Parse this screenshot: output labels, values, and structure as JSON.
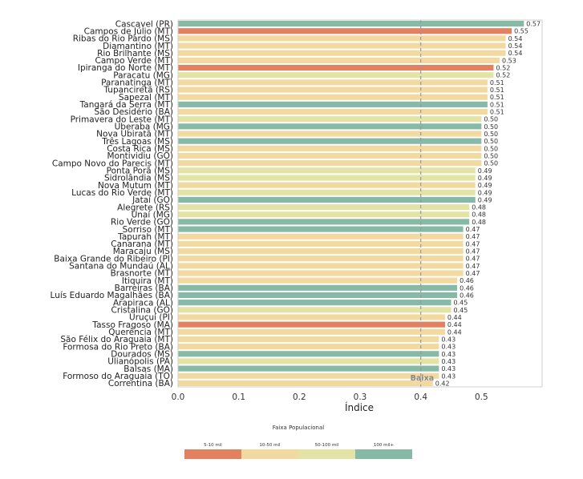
{
  "chart_data": {
    "type": "bar",
    "orientation": "horizontal",
    "xlabel": "Índice",
    "xlim": [
      0,
      0.6
    ],
    "xticks": [
      "0.0",
      "0.1",
      "0.2",
      "0.3",
      "0.4",
      "0.5"
    ],
    "grid": false,
    "reference_line": {
      "x": 0.4,
      "label": "Baixa",
      "color": "#999999"
    },
    "bars": [
      {
        "label": "Cascavel (PR)",
        "value": 0.57,
        "value_label": "0.57",
        "group": "100 mil+"
      },
      {
        "label": "Campos de Júlio (MT)",
        "value": 0.55,
        "value_label": "0.55",
        "group": "5-10 mil"
      },
      {
        "label": "Ribas do Rio Pardo (MS)",
        "value": 0.54,
        "value_label": "0.54",
        "group": "10-50 mil"
      },
      {
        "label": "Diamantino (MT)",
        "value": 0.54,
        "value_label": "0.54",
        "group": "10-50 mil"
      },
      {
        "label": "Rio Brilhante (MS)",
        "value": 0.54,
        "value_label": "0.54",
        "group": "10-50 mil"
      },
      {
        "label": "Campo Verde (MT)",
        "value": 0.53,
        "value_label": "0.53",
        "group": "10-50 mil"
      },
      {
        "label": "Ipiranga do Norte (MT)",
        "value": 0.52,
        "value_label": "0.52",
        "group": "5-10 mil"
      },
      {
        "label": "Paracatu (MG)",
        "value": 0.52,
        "value_label": "0.52",
        "group": "50-100 mil"
      },
      {
        "label": "Paranatinga (MT)",
        "value": 0.51,
        "value_label": "0.51",
        "group": "10-50 mil"
      },
      {
        "label": "Tupanciretã (RS)",
        "value": 0.51,
        "value_label": "0.51",
        "group": "10-50 mil"
      },
      {
        "label": "Sapezal (MT)",
        "value": 0.51,
        "value_label": "0.51",
        "group": "10-50 mil"
      },
      {
        "label": "Tangará da Serra (MT)",
        "value": 0.51,
        "value_label": "0.51",
        "group": "100 mil+"
      },
      {
        "label": "São Desidério (BA)",
        "value": 0.51,
        "value_label": "0.51",
        "group": "10-50 mil"
      },
      {
        "label": "Primavera do Leste (MT)",
        "value": 0.5,
        "value_label": "0.50",
        "group": "50-100 mil"
      },
      {
        "label": "Uberaba (MG)",
        "value": 0.5,
        "value_label": "0.50",
        "group": "100 mil+"
      },
      {
        "label": "Nova Ubiratã (MT)",
        "value": 0.5,
        "value_label": "0.50",
        "group": "10-50 mil"
      },
      {
        "label": "Três Lagoas (MS)",
        "value": 0.5,
        "value_label": "0.50",
        "group": "100 mil+"
      },
      {
        "label": "Costa Rica (MS)",
        "value": 0.5,
        "value_label": "0.50",
        "group": "10-50 mil"
      },
      {
        "label": "Montividiu (GO)",
        "value": 0.5,
        "value_label": "0.50",
        "group": "10-50 mil"
      },
      {
        "label": "Campo Novo do Parecis (MT)",
        "value": 0.5,
        "value_label": "0.50",
        "group": "10-50 mil"
      },
      {
        "label": "Ponta Porã (MS)",
        "value": 0.49,
        "value_label": "0.49",
        "group": "50-100 mil"
      },
      {
        "label": "Sidrolândia (MS)",
        "value": 0.49,
        "value_label": "0.49",
        "group": "50-100 mil"
      },
      {
        "label": "Nova Mutum (MT)",
        "value": 0.49,
        "value_label": "0.49",
        "group": "10-50 mil"
      },
      {
        "label": "Lucas do Rio Verde (MT)",
        "value": 0.49,
        "value_label": "0.49",
        "group": "50-100 mil"
      },
      {
        "label": "Jataí (GO)",
        "value": 0.49,
        "value_label": "0.49",
        "group": "100 mil+"
      },
      {
        "label": "Alegrete (RS)",
        "value": 0.48,
        "value_label": "0.48",
        "group": "50-100 mil"
      },
      {
        "label": "Unaí (MG)",
        "value": 0.48,
        "value_label": "0.48",
        "group": "50-100 mil"
      },
      {
        "label": "Rio Verde (GO)",
        "value": 0.48,
        "value_label": "0.48",
        "group": "100 mil+"
      },
      {
        "label": "Sorriso (MT)",
        "value": 0.47,
        "value_label": "0.47",
        "group": "100 mil+"
      },
      {
        "label": "Tapurah (MT)",
        "value": 0.47,
        "value_label": "0.47",
        "group": "10-50 mil"
      },
      {
        "label": "Canarana (MT)",
        "value": 0.47,
        "value_label": "0.47",
        "group": "10-50 mil"
      },
      {
        "label": "Maracaju (MS)",
        "value": 0.47,
        "value_label": "0.47",
        "group": "10-50 mil"
      },
      {
        "label": "Baixa Grande do Ribeiro (PI)",
        "value": 0.47,
        "value_label": "0.47",
        "group": "10-50 mil"
      },
      {
        "label": "Santana do Mundaú (AL)",
        "value": 0.47,
        "value_label": "0.47",
        "group": "10-50 mil"
      },
      {
        "label": "Brasnorte (MT)",
        "value": 0.47,
        "value_label": "0.47",
        "group": "10-50 mil"
      },
      {
        "label": "Itiquira (MT)",
        "value": 0.46,
        "value_label": "0.46",
        "group": "10-50 mil"
      },
      {
        "label": "Barreiras (BA)",
        "value": 0.46,
        "value_label": "0.46",
        "group": "100 mil+"
      },
      {
        "label": "Luís Eduardo Magalhães (BA)",
        "value": 0.46,
        "value_label": "0.46",
        "group": "100 mil+"
      },
      {
        "label": "Arapiraca (AL)",
        "value": 0.45,
        "value_label": "0.45",
        "group": "100 mil+"
      },
      {
        "label": "Cristalina (GO)",
        "value": 0.45,
        "value_label": "0.45",
        "group": "50-100 mil"
      },
      {
        "label": "Uruçuí (PI)",
        "value": 0.44,
        "value_label": "0.44",
        "group": "10-50 mil"
      },
      {
        "label": "Tasso Fragoso (MA)",
        "value": 0.44,
        "value_label": "0.44",
        "group": "5-10 mil"
      },
      {
        "label": "Querência (MT)",
        "value": 0.44,
        "value_label": "0.44",
        "group": "10-50 mil"
      },
      {
        "label": "São Félix do Araguaia (MT)",
        "value": 0.43,
        "value_label": "0.43",
        "group": "10-50 mil"
      },
      {
        "label": "Formosa do Rio Preto (BA)",
        "value": 0.43,
        "value_label": "0.43",
        "group": "10-50 mil"
      },
      {
        "label": "Dourados (MS)",
        "value": 0.43,
        "value_label": "0.43",
        "group": "100 mil+"
      },
      {
        "label": "Ulianópolis (PA)",
        "value": 0.43,
        "value_label": "0.43",
        "group": "50-100 mil"
      },
      {
        "label": "Balsas (MA)",
        "value": 0.43,
        "value_label": "0.43",
        "group": "100 mil+"
      },
      {
        "label": "Formoso do Araguaia (TO)",
        "value": 0.43,
        "value_label": "0.43",
        "group": "10-50 mil"
      },
      {
        "label": "Correntina (BA)",
        "value": 0.42,
        "value_label": "0.42",
        "group": "10-50 mil"
      }
    ],
    "legend": {
      "title": "Faixa Populacional",
      "placement": "bottom",
      "items": [
        {
          "label": "5-10 mil",
          "color": "#e2805f"
        },
        {
          "label": "10-50 mil",
          "color": "#f2d9a0"
        },
        {
          "label": "50-100 mil",
          "color": "#e3e3a6"
        },
        {
          "label": "100 mil+",
          "color": "#86b9a6"
        }
      ]
    }
  }
}
